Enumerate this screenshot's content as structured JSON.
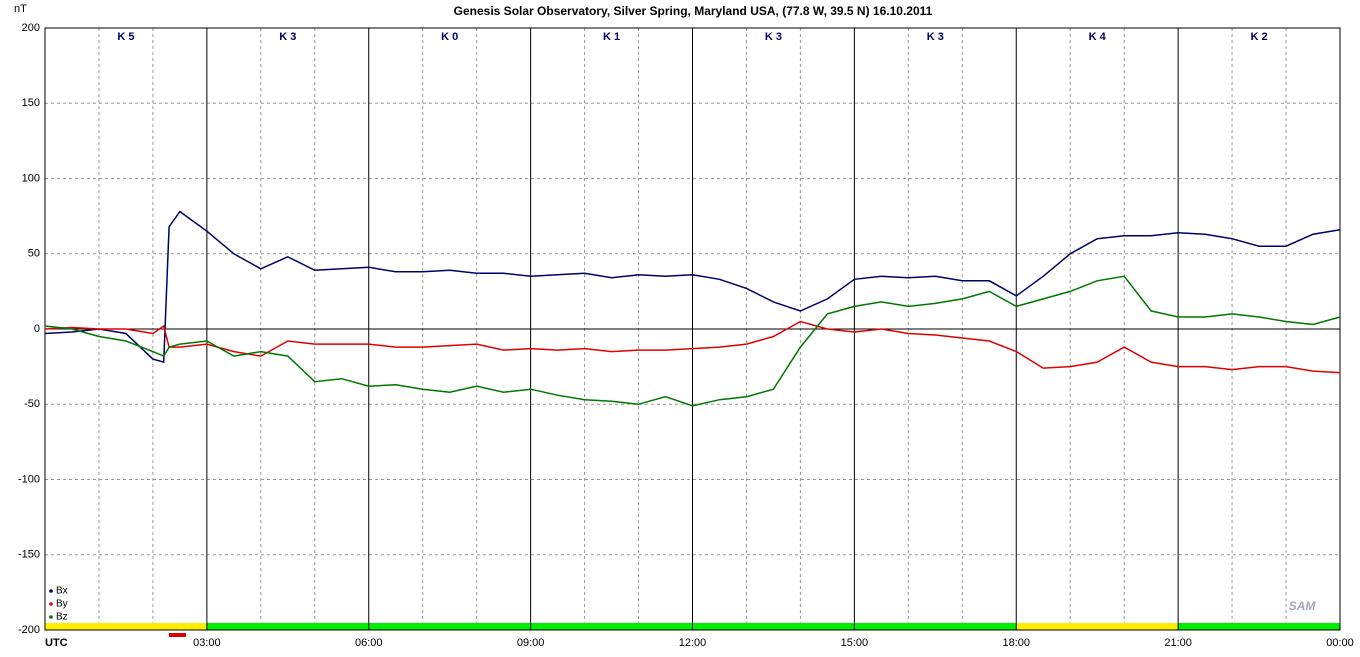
{
  "chart_data": {
    "type": "line",
    "title": "Genesis Solar Observatory, Silver Spring, Maryland USA, (77.8 W, 39.5 N)  16.10.2011",
    "y_label": "nT",
    "logo": "SAM",
    "k_indices": [
      "K 5",
      "K 3",
      "K 0",
      "K 1",
      "K 3",
      "K 3",
      "K 4",
      "K 2"
    ],
    "k_status_colors": [
      "#ffee00",
      "#00ee00",
      "#00ee00",
      "#00ee00",
      "#00ee00",
      "#00ee00",
      "#ffee00",
      "#00ee00"
    ],
    "x": [
      0,
      0.5,
      1,
      1.5,
      2,
      2.2,
      2.3,
      2.5,
      3,
      3.5,
      4,
      4.5,
      5,
      5.5,
      6,
      6.5,
      7,
      7.5,
      8,
      8.5,
      9,
      9.5,
      10,
      10.5,
      11,
      11.5,
      12,
      12.5,
      13,
      13.5,
      14,
      14.5,
      15,
      15.5,
      16,
      16.5,
      17,
      17.5,
      18,
      18.5,
      19,
      19.5,
      20,
      20.5,
      21,
      21.5,
      22,
      22.5,
      23,
      23.5,
      24
    ],
    "series": [
      {
        "name": "Bx",
        "color": "#000066",
        "values": [
          -3,
          -2,
          0,
          -3,
          -20,
          -22,
          68,
          78,
          65,
          50,
          40,
          48,
          39,
          40,
          41,
          38,
          38,
          39,
          37,
          37,
          35,
          36,
          37,
          34,
          36,
          35,
          36,
          33,
          27,
          18,
          12,
          20,
          33,
          35,
          34,
          35,
          32,
          32,
          22,
          35,
          50,
          60,
          62,
          62,
          64,
          63,
          60,
          55,
          55,
          63,
          66
        ]
      },
      {
        "name": "By",
        "color": "#e00000",
        "values": [
          0,
          1,
          0,
          0,
          -3,
          2,
          -12,
          -12,
          -10,
          -15,
          -18,
          -8,
          -10,
          -10,
          -10,
          -12,
          -12,
          -11,
          -10,
          -14,
          -13,
          -14,
          -13,
          -15,
          -14,
          -14,
          -13,
          -12,
          -10,
          -5,
          5,
          0,
          -2,
          0,
          -3,
          -4,
          -6,
          -8,
          -15,
          -26,
          -25,
          -22,
          -12,
          -22,
          -25,
          -25,
          -27,
          -25,
          -25,
          -28,
          -29
        ]
      },
      {
        "name": "Bz",
        "color": "#007700",
        "values": [
          2,
          0,
          -5,
          -8,
          -15,
          -18,
          -12,
          -10,
          -8,
          -18,
          -15,
          -18,
          -35,
          -33,
          -38,
          -37,
          -40,
          -42,
          -38,
          -42,
          -40,
          -44,
          -47,
          -48,
          -50,
          -45,
          -51,
          -47,
          -45,
          -40,
          -12,
          10,
          15,
          18,
          15,
          17,
          20,
          25,
          15,
          20,
          25,
          32,
          35,
          12,
          8,
          8,
          10,
          8,
          5,
          3,
          8
        ]
      }
    ],
    "xlim": [
      0,
      24
    ],
    "xticks": [
      {
        "value": 0,
        "label": "UTC"
      },
      {
        "value": 3,
        "label": "03:00"
      },
      {
        "value": 6,
        "label": "06:00"
      },
      {
        "value": 9,
        "label": "09:00"
      },
      {
        "value": 12,
        "label": "12:00"
      },
      {
        "value": 15,
        "label": "15:00"
      },
      {
        "value": 18,
        "label": "18:00"
      },
      {
        "value": 21,
        "label": "21:00"
      },
      {
        "value": 24,
        "label": "00:00"
      }
    ],
    "ylim": [
      -200,
      200
    ],
    "yticks": [
      -200,
      -150,
      -100,
      -50,
      0,
      50,
      100,
      150,
      200
    ],
    "grid": true,
    "legend": "lower left"
  }
}
